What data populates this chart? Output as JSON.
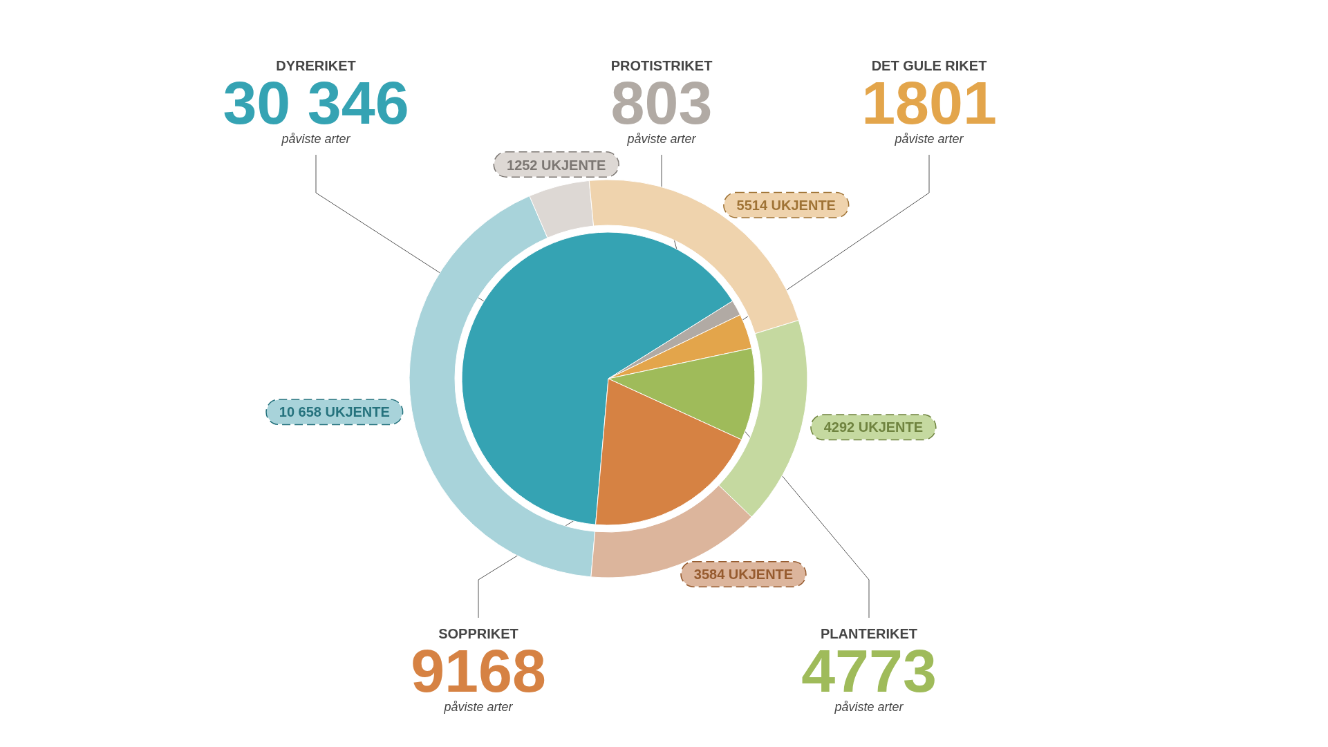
{
  "chart_data": {
    "type": "pie",
    "categories": [
      "DYRERIKET",
      "PROTISTRIKET",
      "DET GULE RIKET",
      "PLANTERIKET",
      "SOPPRIKET"
    ],
    "series": [
      {
        "name": "påviste arter",
        "values": [
          30346,
          803,
          1801,
          4773,
          9168
        ],
        "colors": [
          "#35a3b3",
          "#b1aaa4",
          "#e3a54b",
          "#9fbb5a",
          "#d68243"
        ],
        "value_labels": [
          "30 346",
          "803",
          "1801",
          "4773",
          "9168"
        ]
      },
      {
        "values": [
          10658,
          1252,
          5514,
          4292,
          3584
        ],
        "colors": [
          "#a8d3da",
          "#ddd8d4",
          "#efd3ad",
          "#c5d9a0",
          "#dcb59c"
        ],
        "value_labels": [
          "10 658 UKJENTE",
          "1252 UKJENTE",
          "5514 UKJENTE",
          "4292 UKJENTE",
          "3584 UKJENTE"
        ]
      }
    ]
  }
}
